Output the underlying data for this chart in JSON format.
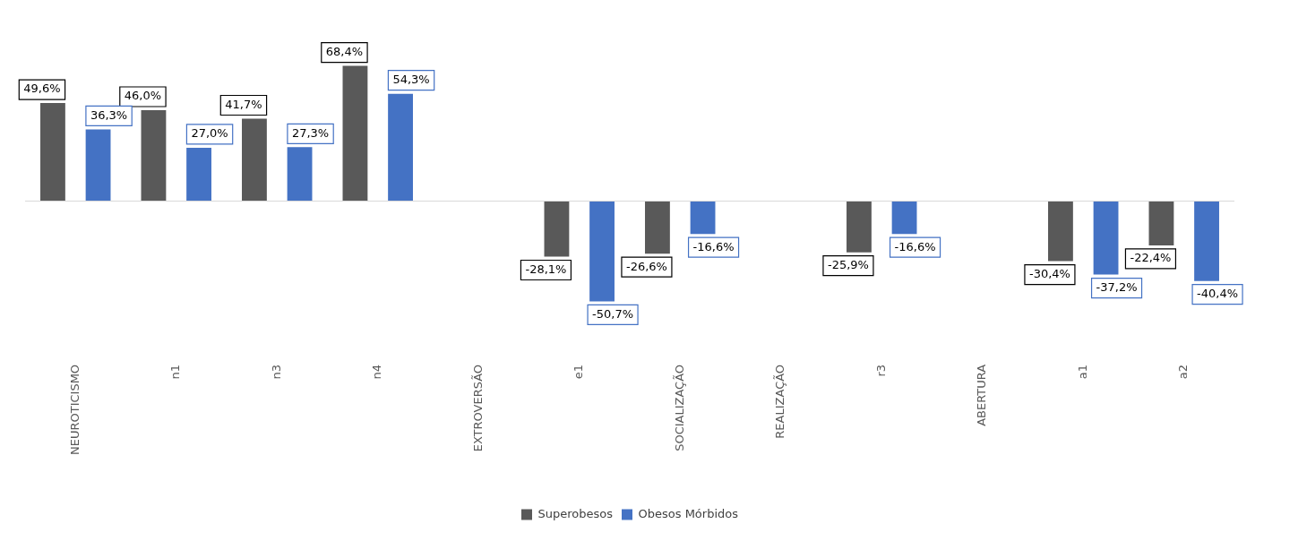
{
  "chart_data": {
    "type": "bar",
    "categories": [
      "NEUROTICISMO",
      "n1",
      "n3",
      "n4",
      "EXTROVERSÃO",
      "e1",
      "SOCIALIZAÇÃO",
      "REALIZAÇÃO",
      "r3",
      "ABERTURA",
      "a1",
      "a2"
    ],
    "series": [
      {
        "name": "Superobesos",
        "color": "#595959",
        "values": [
          49.6,
          46.0,
          41.7,
          68.4,
          null,
          -28.1,
          -26.6,
          null,
          -25.9,
          null,
          -30.4,
          -22.4
        ],
        "value_labels": [
          "49,6%",
          "46,0%",
          "41,7%",
          "68,4%",
          null,
          "-28,1%",
          "-26,6%",
          null,
          "-25,9%",
          null,
          "-30,4%",
          "-22,4%"
        ]
      },
      {
        "name": "Obesos Mórbidos",
        "color": "#4472c4",
        "values": [
          36.3,
          27.0,
          27.3,
          54.3,
          null,
          -50.7,
          -16.6,
          null,
          -16.6,
          null,
          -37.2,
          -40.4
        ],
        "value_labels": [
          "36,3%",
          "27,0%",
          "27,3%",
          "54,3%",
          null,
          "-50,7%",
          "-16,6%",
          null,
          "-16,6%",
          null,
          "-37,2%",
          "-40,4%"
        ]
      }
    ],
    "legend": "bottom",
    "grid": false
  }
}
